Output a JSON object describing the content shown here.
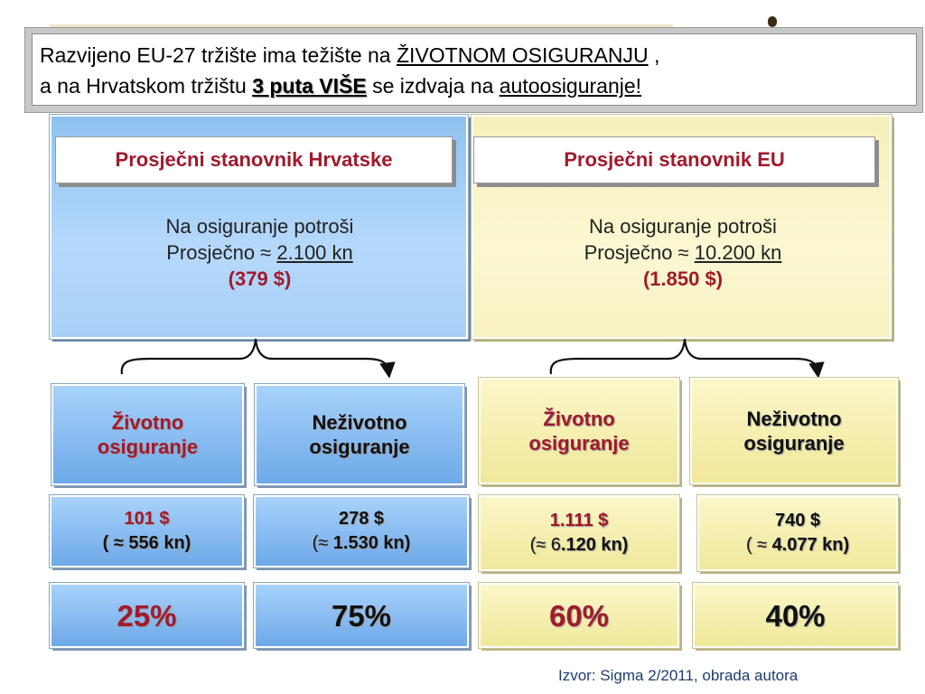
{
  "callout": {
    "line1": {
      "before": "Razvijeno EU-27 tržište ima težište na ",
      "emph": "ŽIVOTNOM OSIGURANJU",
      "after": " ,"
    },
    "line2": {
      "before": "a  na Hrvatskom tržištu ",
      "emph": "3 puta VIŠE",
      "middle": " se izdvaja na ",
      "emph2": "autoosiguranje!"
    }
  },
  "croatia": {
    "header": "Prosječni stanovnik Hrvatske",
    "spend_line": "Na osiguranje potroši",
    "avg_prefix": "Prosječno ≈ ",
    "avg_value": "2.100 kn",
    "usd": "(379 $)",
    "life": {
      "label1": "Životno",
      "label2": "osiguranje",
      "usd": "101 $",
      "kn_prefix": "( ≈ ",
      "kn": "556 kn)",
      "pct": "25%"
    },
    "nonlife": {
      "label1": "Neživotno",
      "label2": "osiguranje",
      "usd": "278 $",
      "kn_prefix": "(≈ ",
      "kn": "1.530 kn)",
      "pct": "75%"
    }
  },
  "eu": {
    "header": "Prosječni stanovnik EU",
    "spend_line": "Na osiguranje potroši",
    "avg_prefix": "Prosječno ≈ ",
    "avg_value": "10.200 kn",
    "usd": "(1.850 $)",
    "life": {
      "label1": "Životno",
      "label2": "osiguranje",
      "usd": "1.111 $",
      "kn_prefix": "(≈ 6",
      "kn": ".120 kn)",
      "pct": "60%"
    },
    "nonlife": {
      "label1": "Neživotno",
      "label2": "osiguranje",
      "usd": "740 $",
      "kn_prefix": "( ≈ ",
      "kn": "4.077 kn)",
      "pct": "40%"
    }
  },
  "source": "Izvor: Sigma 2/2011, obrada autora",
  "colors": {
    "accent_red": "#a01a2c",
    "blue_panel": "#a9d0f7",
    "yellow_panel": "#f7f2c2"
  }
}
